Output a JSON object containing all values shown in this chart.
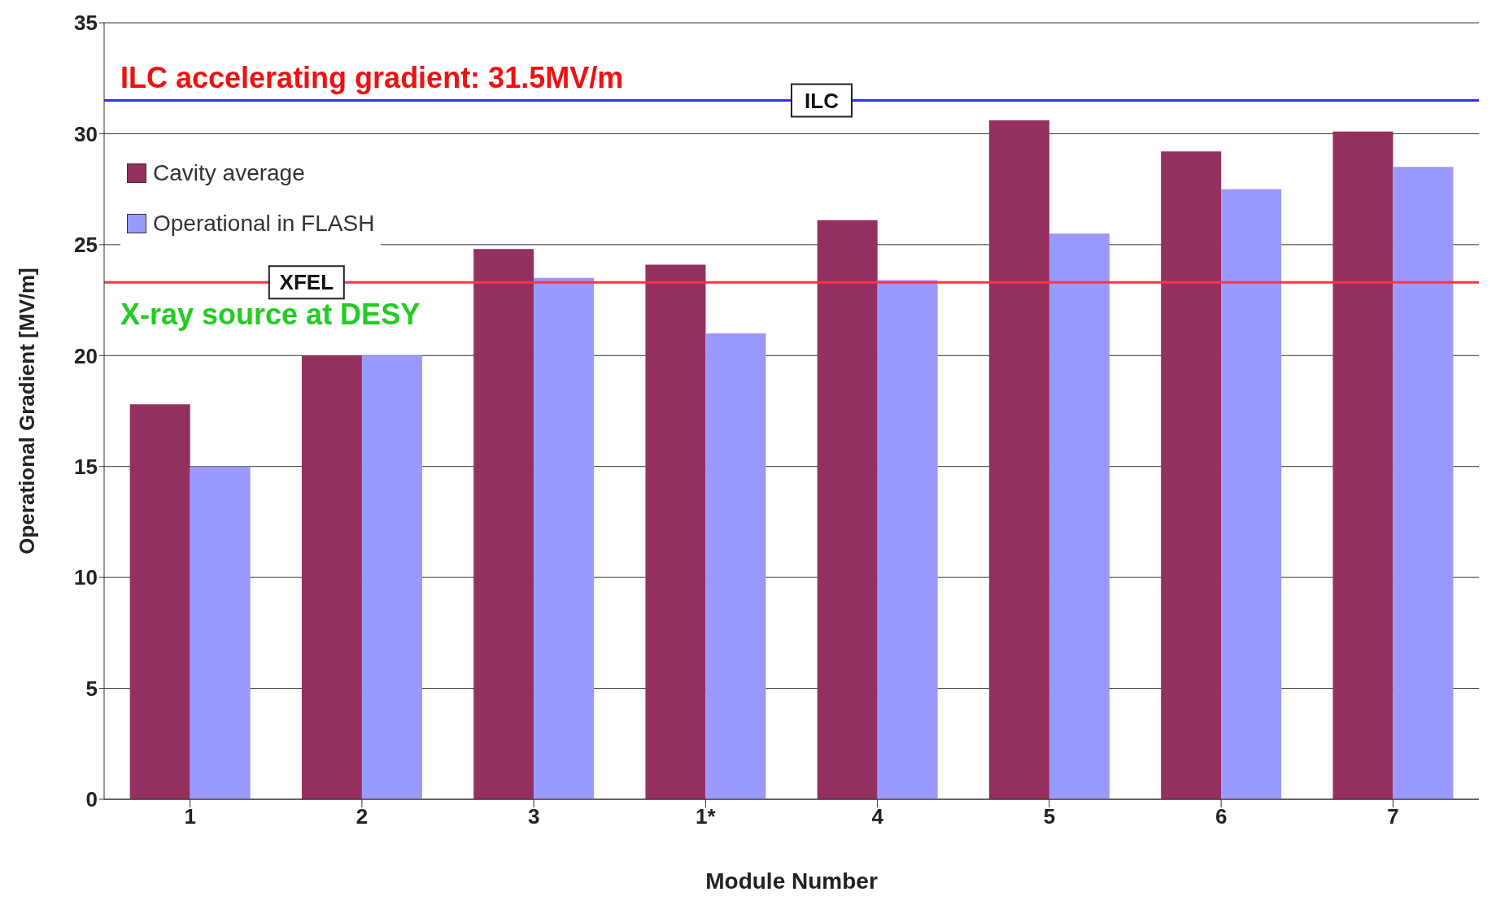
{
  "chart_data": {
    "type": "bar",
    "xlabel": "Module Number",
    "ylabel": "Operational Gradient [MV/m]",
    "categories": [
      "1",
      "2",
      "3",
      "1*",
      "4",
      "5",
      "6",
      "7"
    ],
    "series": [
      {
        "name": "Cavity average",
        "color": "#943060",
        "values": [
          17.8,
          20,
          24.8,
          24.1,
          26.1,
          30.6,
          29.2,
          30.1
        ]
      },
      {
        "name": "Operational in FLASH",
        "color": "#9999ff",
        "values": [
          15,
          20,
          23.5,
          21,
          23.4,
          25.5,
          27.5,
          28.5
        ]
      }
    ],
    "ylim": [
      0,
      35
    ],
    "yticks": [
      0,
      5,
      10,
      15,
      20,
      25,
      30,
      35
    ],
    "grid": "y",
    "legend": "top left",
    "ref_lines": [
      {
        "axis": "y",
        "value": 31.5,
        "label": "ILC",
        "color": "#3333ff"
      },
      {
        "axis": "y",
        "value": 23.3,
        "label": "XFEL",
        "color": "#ff3344"
      }
    ],
    "annotations": [
      "ILC accelerating gradient: 31.5MV/m",
      "X-ray source at DESY"
    ]
  }
}
